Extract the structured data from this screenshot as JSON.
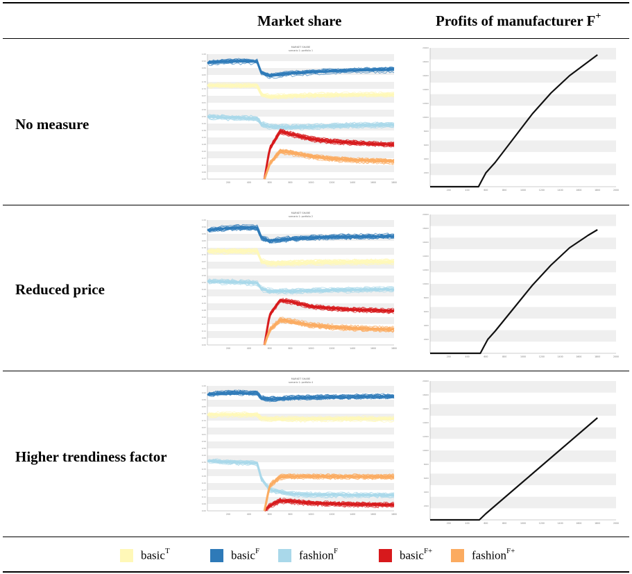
{
  "header": {
    "market_share": "Market share",
    "profits_text": "Profits of manufacturer F",
    "profits_sup": "+"
  },
  "rows": [
    {
      "label": "No measure"
    },
    {
      "label": "Reduced price"
    },
    {
      "label": "Higher trendiness factor"
    }
  ],
  "legend": [
    {
      "base": "basic",
      "sup": "T",
      "color": "#fff8b8"
    },
    {
      "base": "basic",
      "sup": "F",
      "color": "#2e7ab8"
    },
    {
      "base": "fashion",
      "sup": "F",
      "color": "#a9d8ea"
    },
    {
      "base": "basic",
      "sup": "F+",
      "color": "#d7191c"
    },
    {
      "base": "fashion",
      "sup": "F+",
      "color": "#fbab60"
    }
  ],
  "chart_data": [
    {
      "type": "line",
      "panel": "market-share-no-measure",
      "title": "MARKET SHARE",
      "subtitle": "scenario 1: portfolio 1",
      "xlim": [
        0,
        1800
      ],
      "x_ticks": [
        200,
        400,
        600,
        800,
        1000,
        1200,
        1400,
        1600,
        1800
      ],
      "series": [
        {
          "name": "basic F",
          "color": "#2e7ab8",
          "x": [
            0,
            100,
            200,
            300,
            400,
            480,
            520,
            600,
            800,
            1000,
            1200,
            1400,
            1600,
            1800
          ],
          "y": [
            0.93,
            0.935,
            0.94,
            0.942,
            0.94,
            0.94,
            0.85,
            0.825,
            0.845,
            0.855,
            0.862,
            0.868,
            0.872,
            0.875
          ]
        },
        {
          "name": "basic T",
          "color": "#fff8b8",
          "x": [
            0,
            200,
            400,
            480,
            520,
            600,
            800,
            1000,
            1200,
            1400,
            1600,
            1800
          ],
          "y": [
            0.75,
            0.75,
            0.75,
            0.75,
            0.68,
            0.66,
            0.668,
            0.672,
            0.675,
            0.676,
            0.677,
            0.678
          ]
        },
        {
          "name": "fashion F",
          "color": "#a9d8ea",
          "x": [
            0,
            200,
            400,
            480,
            520,
            600,
            800,
            1000,
            1200,
            1400,
            1600,
            1800
          ],
          "y": [
            0.5,
            0.492,
            0.488,
            0.485,
            0.44,
            0.42,
            0.415,
            0.42,
            0.425,
            0.43,
            0.432,
            0.435
          ]
        },
        {
          "name": "basic F+",
          "color": "#d7191c",
          "x": [
            550,
            600,
            700,
            800,
            1000,
            1200,
            1400,
            1600,
            1800
          ],
          "y": [
            0.0,
            0.24,
            0.38,
            0.36,
            0.32,
            0.3,
            0.29,
            0.28,
            0.275
          ]
        },
        {
          "name": "fashion F+",
          "color": "#fbab60",
          "x": [
            550,
            600,
            700,
            800,
            1000,
            1200,
            1400,
            1600,
            1800
          ],
          "y": [
            0.0,
            0.12,
            0.22,
            0.21,
            0.18,
            0.16,
            0.15,
            0.145,
            0.14
          ]
        }
      ]
    },
    {
      "type": "line",
      "panel": "profits-no-measure",
      "xlim": [
        0,
        2000
      ],
      "ylim": [
        0,
        20000
      ],
      "series": [
        {
          "name": "profit",
          "color": "#111111",
          "x": [
            0,
            300,
            500,
            520,
            560,
            600,
            700,
            900,
            1100,
            1300,
            1500,
            1700,
            1800
          ],
          "y": [
            0,
            0,
            0,
            0,
            1000,
            2000,
            3500,
            7000,
            10500,
            13500,
            16000,
            18000,
            19000
          ]
        }
      ]
    },
    {
      "type": "line",
      "panel": "market-share-reduced-price",
      "title": "MARKET SHARE",
      "subtitle": "scenario 1: portfolio 2",
      "xlim": [
        0,
        1800
      ],
      "x_ticks": [
        200,
        400,
        600,
        800,
        1000,
        1200,
        1400,
        1600,
        1800
      ],
      "series": [
        {
          "name": "basic F",
          "color": "#2e7ab8",
          "x": [
            0,
            100,
            200,
            300,
            400,
            480,
            520,
            600,
            800,
            1000,
            1200,
            1400,
            1600,
            1800
          ],
          "y": [
            0.92,
            0.93,
            0.935,
            0.94,
            0.94,
            0.938,
            0.86,
            0.835,
            0.85,
            0.86,
            0.865,
            0.868,
            0.87,
            0.872
          ]
        },
        {
          "name": "basic T",
          "color": "#fff8b8",
          "x": [
            0,
            200,
            400,
            480,
            520,
            600,
            800,
            1000,
            1200,
            1400,
            1600,
            1800
          ],
          "y": [
            0.75,
            0.75,
            0.75,
            0.75,
            0.67,
            0.65,
            0.655,
            0.66,
            0.662,
            0.663,
            0.664,
            0.665
          ]
        },
        {
          "name": "fashion F",
          "color": "#a9d8ea",
          "x": [
            0,
            200,
            400,
            480,
            520,
            600,
            800,
            1000,
            1200,
            1400,
            1600,
            1800
          ],
          "y": [
            0.51,
            0.505,
            0.5,
            0.495,
            0.45,
            0.43,
            0.43,
            0.435,
            0.44,
            0.442,
            0.444,
            0.446
          ]
        },
        {
          "name": "basic F+",
          "color": "#d7191c",
          "x": [
            550,
            600,
            700,
            800,
            1000,
            1200,
            1400,
            1600,
            1800
          ],
          "y": [
            0.0,
            0.24,
            0.36,
            0.35,
            0.31,
            0.295,
            0.285,
            0.28,
            0.275
          ]
        },
        {
          "name": "fashion F+",
          "color": "#fbab60",
          "x": [
            550,
            600,
            700,
            800,
            1000,
            1200,
            1400,
            1600,
            1800
          ],
          "y": [
            0.0,
            0.12,
            0.2,
            0.19,
            0.16,
            0.145,
            0.135,
            0.13,
            0.125
          ]
        }
      ]
    },
    {
      "type": "line",
      "panel": "profits-reduced-price",
      "xlim": [
        0,
        2000
      ],
      "ylim": [
        0,
        20000
      ],
      "series": [
        {
          "name": "profit",
          "color": "#111111",
          "x": [
            0,
            300,
            520,
            540,
            580,
            620,
            700,
            900,
            1100,
            1300,
            1500,
            1700,
            1800
          ],
          "y": [
            0,
            0,
            0,
            0,
            1000,
            2000,
            3200,
            6500,
            9800,
            12700,
            15200,
            17000,
            17800
          ]
        }
      ]
    },
    {
      "type": "line",
      "panel": "market-share-higher-trendiness",
      "title": "MARKET SHARE",
      "subtitle": "scenario 1: portfolio 4",
      "xlim": [
        0,
        1800
      ],
      "x_ticks": [
        200,
        400,
        600,
        800,
        1000,
        1200,
        1400,
        1600,
        1800
      ],
      "series": [
        {
          "name": "basic F",
          "color": "#2e7ab8",
          "x": [
            0,
            100,
            200,
            300,
            400,
            480,
            520,
            600,
            800,
            1000,
            1200,
            1400,
            1600,
            1800
          ],
          "y": [
            0.93,
            0.935,
            0.94,
            0.942,
            0.94,
            0.94,
            0.9,
            0.89,
            0.9,
            0.905,
            0.908,
            0.91,
            0.912,
            0.913
          ]
        },
        {
          "name": "basic T",
          "color": "#fff8b8",
          "x": [
            0,
            200,
            400,
            480,
            520,
            600,
            800,
            1000,
            1200,
            1400,
            1600,
            1800
          ],
          "y": [
            0.77,
            0.77,
            0.77,
            0.77,
            0.74,
            0.735,
            0.735,
            0.736,
            0.736,
            0.737,
            0.737,
            0.737
          ]
        },
        {
          "name": "fashion F",
          "color": "#a9d8ea",
          "x": [
            0,
            200,
            400,
            480,
            520,
            600,
            800,
            1000,
            1200,
            1400,
            1600,
            1800
          ],
          "y": [
            0.4,
            0.39,
            0.385,
            0.38,
            0.26,
            0.17,
            0.135,
            0.13,
            0.128,
            0.127,
            0.126,
            0.125
          ]
        },
        {
          "name": "basic F+",
          "color": "#d7191c",
          "x": [
            550,
            600,
            700,
            800,
            1000,
            1200,
            1400,
            1600,
            1800
          ],
          "y": [
            0.0,
            0.04,
            0.08,
            0.075,
            0.06,
            0.055,
            0.05,
            0.048,
            0.046
          ]
        },
        {
          "name": "fashion F+",
          "color": "#fbab60",
          "x": [
            550,
            600,
            700,
            800,
            1000,
            1200,
            1400,
            1600,
            1800
          ],
          "y": [
            0.0,
            0.2,
            0.27,
            0.275,
            0.275,
            0.274,
            0.273,
            0.272,
            0.272
          ]
        }
      ]
    },
    {
      "type": "line",
      "panel": "profits-higher-trendiness",
      "xlim": [
        0,
        2000
      ],
      "ylim": [
        0,
        20000
      ],
      "series": [
        {
          "name": "profit",
          "color": "#111111",
          "x": [
            0,
            300,
            530,
            600,
            800,
            1000,
            1200,
            1400,
            1600,
            1800
          ],
          "y": [
            0,
            0,
            0,
            900,
            3200,
            5500,
            7800,
            10100,
            12400,
            14700
          ]
        }
      ]
    }
  ]
}
